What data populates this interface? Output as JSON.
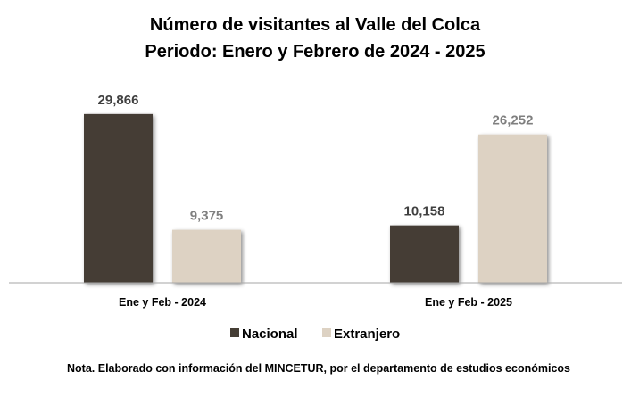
{
  "chart_data": {
    "type": "bar",
    "title": "Número de visitantes al Valle del Colca",
    "subtitle": "Periodo: Enero y Febrero de 2024 - 2025",
    "categories": [
      "Ene y Feb - 2024",
      "Ene y Feb - 2025"
    ],
    "series": [
      {
        "name": "Nacional",
        "color": "#453E35",
        "label_color": "#404040",
        "values": [
          29866,
          10158
        ],
        "labels": [
          "29,866",
          "10,158"
        ]
      },
      {
        "name": "Extranjero",
        "color": "#DDD2C3",
        "label_color": "#7F7F7F",
        "values": [
          9375,
          26252
        ],
        "labels": [
          "9,375",
          "26,252"
        ]
      }
    ],
    "ylim": [
      0,
      30000
    ],
    "grid": false,
    "legend_position": "bottom",
    "xlabel": "",
    "ylabel": "",
    "note": "Nota. Elaborado con información del MINCETUR, por el departamento de estudios económicos"
  }
}
